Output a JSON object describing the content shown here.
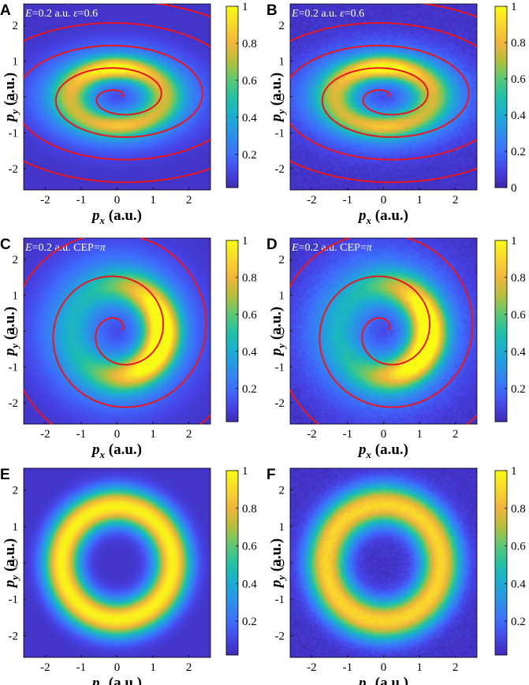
{
  "colors": {
    "colormap": [
      "#3e26a8",
      "#4743e6",
      "#3d6ffc",
      "#2f8fe8",
      "#1cacd5",
      "#1fc0a7",
      "#5ac876",
      "#b4bf3c",
      "#f2b53c",
      "#f9d72c",
      "#f9fb15"
    ],
    "background": "#3e26a8",
    "trajectory": "#e8171f"
  },
  "chart_data": [
    {
      "panel": "A",
      "type": "heatmap",
      "pattern": "elliptic",
      "annotation": {
        "italic_a": "E",
        "text_a": "=0.2 a.u. ",
        "italic_b": "ε",
        "text_b": "=0.6"
      },
      "xlabel": {
        "main": "p",
        "sub": "x",
        "unit": " (a.u.)"
      },
      "ylabel": {
        "main": "p",
        "sub": "y",
        "unit": " (a.u.)"
      },
      "xlim": [
        -2.6,
        2.6
      ],
      "ylim": [
        -2.6,
        2.6
      ],
      "xticks": [
        "-2",
        "-1",
        "0",
        "1",
        "2"
      ],
      "xtick_values": [
        -2,
        -1,
        0,
        1,
        2
      ],
      "yticks": [
        "2",
        "1",
        "0",
        "-1",
        "-2"
      ],
      "ytick_values": [
        2,
        1,
        0,
        -1,
        -2
      ],
      "colorbar_ticks": [
        "1",
        "0.8",
        "0.6",
        "0.4",
        "0.2"
      ],
      "colorbar_tick_values": [
        1,
        0.8,
        0.6,
        0.4,
        0.2
      ],
      "colorbar_range": [
        0.02,
        1
      ],
      "features": {
        "ring_radius_x": 1.3,
        "ring_radius_y": 0.8,
        "ring_width": 0.45,
        "peak_angle_deg": 95,
        "spiral_ellipticity": 0.55,
        "spiral_step_per_turn": 1.15
      }
    },
    {
      "panel": "B",
      "type": "heatmap",
      "pattern": "elliptic",
      "annotation": {
        "italic_a": "E",
        "text_a": "=0.2 a.u. ",
        "italic_b": "ε",
        "text_b": "=0.6"
      },
      "xlabel": {
        "main": "p",
        "sub": "x",
        "unit": " (a.u.)"
      },
      "ylabel": {
        "main": "p",
        "sub": "y",
        "unit": " (a.u.)"
      },
      "xlim": [
        -2.6,
        2.6
      ],
      "ylim": [
        -2.6,
        2.6
      ],
      "xticks": [
        "-2",
        "-1",
        "0",
        "1",
        "2"
      ],
      "xtick_values": [
        -2,
        -1,
        0,
        1,
        2
      ],
      "yticks": [
        "2",
        "1",
        "0",
        "-1",
        "-2"
      ],
      "ytick_values": [
        2,
        1,
        0,
        -1,
        -2
      ],
      "colorbar_ticks": [
        "1",
        "0.8",
        "0.6",
        "0.4",
        "0.2",
        "0"
      ],
      "colorbar_tick_values": [
        1,
        0.8,
        0.6,
        0.4,
        0.2,
        0
      ],
      "colorbar_range": [
        0,
        1
      ],
      "features": {
        "ring_radius_x": 1.35,
        "ring_radius_y": 0.82,
        "ring_width": 0.5,
        "peak_angle_deg": 90,
        "spiral_ellipticity": 0.55,
        "spiral_step_per_turn": 1.15
      }
    },
    {
      "panel": "C",
      "type": "heatmap",
      "pattern": "crescent",
      "annotation": {
        "italic_a": "E",
        "text_a": "=0.2 a.u. CEP=",
        "italic_b": "π",
        "text_b": ""
      },
      "xlabel": {
        "main": "p",
        "sub": "x",
        "unit": " (a.u.)"
      },
      "ylabel": {
        "main": "p",
        "sub": "y",
        "unit": " (a.u.)"
      },
      "xlim": [
        -2.6,
        2.6
      ],
      "ylim": [
        -2.6,
        2.6
      ],
      "xticks": [
        "-2",
        "-1",
        "0",
        "1",
        "2"
      ],
      "xtick_values": [
        -2,
        -1,
        0,
        1,
        2
      ],
      "yticks": [
        "2",
        "1",
        "0",
        "-1",
        "-2"
      ],
      "ytick_values": [
        2,
        1,
        0,
        -1,
        -2
      ],
      "colorbar_ticks": [
        "1",
        "0.8",
        "0.6",
        "0.4",
        "0.2"
      ],
      "colorbar_tick_values": [
        1,
        0.8,
        0.6,
        0.4,
        0.2
      ],
      "colorbar_range": [
        0.02,
        1
      ],
      "features": {
        "ring_radius": 1.25,
        "ring_width": 0.55,
        "peak_angle_deg": -10,
        "spiral_ellipticity": 1.0,
        "spiral_step_per_turn": 1.2
      }
    },
    {
      "panel": "D",
      "type": "heatmap",
      "pattern": "crescent",
      "annotation": {
        "italic_a": "E",
        "text_a": "=0.2 a.u. CEP=",
        "italic_b": "π",
        "text_b": ""
      },
      "xlabel": {
        "main": "p",
        "sub": "x",
        "unit": " (a.u.)"
      },
      "ylabel": {
        "main": "p",
        "sub": "y",
        "unit": " (a.u.)"
      },
      "xlim": [
        -2.6,
        2.6
      ],
      "ylim": [
        -2.6,
        2.6
      ],
      "xticks": [
        "-2",
        "-1",
        "0",
        "1",
        "2"
      ],
      "xtick_values": [
        -2,
        -1,
        0,
        1,
        2
      ],
      "yticks": [
        "2",
        "1",
        "0",
        "-1",
        "-2"
      ],
      "ytick_values": [
        2,
        1,
        0,
        -1,
        -2
      ],
      "colorbar_ticks": [
        "1",
        "0.8",
        "0.6",
        "0.4",
        "0.2"
      ],
      "colorbar_tick_values": [
        1,
        0.8,
        0.6,
        0.4,
        0.2
      ],
      "colorbar_range": [
        0.02,
        1
      ],
      "features": {
        "ring_radius": 1.25,
        "ring_width": 0.55,
        "peak_angle_deg": -10,
        "spiral_ellipticity": 1.0,
        "spiral_step_per_turn": 1.2
      }
    },
    {
      "panel": "E",
      "type": "heatmap",
      "pattern": "ring",
      "annotation": null,
      "xlabel": {
        "main": "p",
        "sub": "x",
        "unit": " (a.u.)"
      },
      "ylabel": {
        "main": "p",
        "sub": "y",
        "unit": " (a.u.)"
      },
      "xlim": [
        -2.6,
        2.6
      ],
      "ylim": [
        -2.6,
        2.6
      ],
      "xticks": [
        "-2",
        "-1",
        "0",
        "1",
        "2"
      ],
      "xtick_values": [
        -2,
        -1,
        0,
        1,
        2
      ],
      "yticks": [
        "2",
        "1",
        "0",
        "-1",
        "-2"
      ],
      "ytick_values": [
        2,
        1,
        0,
        -1,
        -2
      ],
      "colorbar_ticks": [
        "1",
        "0.8",
        "0.6",
        "0.4",
        "0.2"
      ],
      "colorbar_tick_values": [
        1,
        0.8,
        0.6,
        0.4,
        0.2
      ],
      "colorbar_range": [
        0.02,
        1
      ],
      "features": {
        "ring_radius": 1.55,
        "ring_width": 0.5,
        "peak_value": 0.93
      }
    },
    {
      "panel": "F",
      "type": "heatmap",
      "pattern": "ring",
      "annotation": null,
      "xlabel": {
        "main": "p",
        "sub": "x",
        "unit": " (a.u.)"
      },
      "ylabel": {
        "main": "p",
        "sub": "y",
        "unit": " (a.u.)"
      },
      "xlim": [
        -2.6,
        2.6
      ],
      "ylim": [
        -2.6,
        2.6
      ],
      "xticks": [
        "-2",
        "-1",
        "0",
        "1",
        "2"
      ],
      "xtick_values": [
        -2,
        -1,
        0,
        1,
        2
      ],
      "yticks": [
        "2",
        "1",
        "0",
        "-1",
        "-2"
      ],
      "ytick_values": [
        2,
        1,
        0,
        -1,
        -2
      ],
      "colorbar_ticks": [
        "1",
        "0.8",
        "0.6",
        "0.4",
        "0.2"
      ],
      "colorbar_tick_values": [
        1,
        0.8,
        0.6,
        0.4,
        0.2
      ],
      "colorbar_range": [
        0.02,
        1
      ],
      "features": {
        "ring_radius": 1.6,
        "ring_width": 0.55,
        "peak_value": 0.85
      }
    }
  ]
}
